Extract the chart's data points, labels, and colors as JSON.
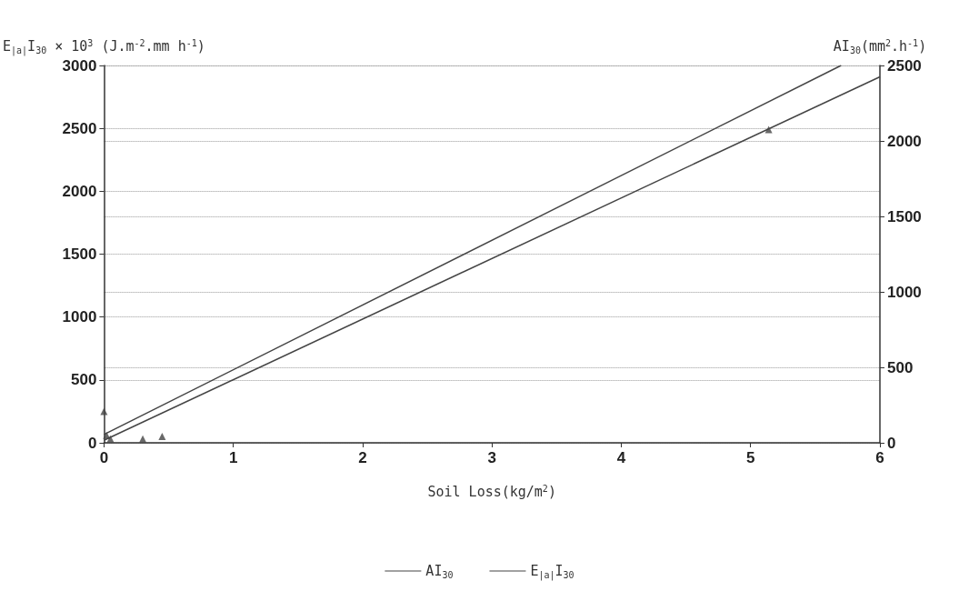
{
  "chart_data": {
    "type": "line",
    "xlabel": "Soil Loss(kg/m$^{2}$)",
    "ylabel": "E$_{|a|}$I$_{30}$ × 10$^{3}$ (J.m$^{-2}$.mm h$^{-1}$)",
    "y2label": "AI$_{30}$(mm$^{2}$.h$^{-1}$)",
    "series": [
      {
        "name": "AI$_{30}$",
        "color": "#444444",
        "axis": "y2",
        "x": [
          0,
          5.7
        ],
        "values": [
          55,
          2500
        ],
        "marker": "none"
      },
      {
        "name": "E$_{|a|}$I$_{30}$",
        "color": "#444444",
        "x": [
          0,
          6
        ],
        "values": [
          20,
          2910
        ],
        "marker": "none"
      },
      {
        "type": "scatter",
        "color": "#444444",
        "x": [
          0,
          0.02,
          0.05,
          0.3,
          0.45,
          5.14
        ],
        "values": [
          250,
          60,
          30,
          30,
          50,
          2490
        ],
        "marker": "triangle"
      }
    ],
    "xlim": [
      0,
      6
    ],
    "xticks": [
      0,
      1,
      2,
      3,
      4,
      5,
      6
    ],
    "ylim": [
      0,
      3000
    ],
    "yticks": [
      0,
      500,
      1000,
      1500,
      2000,
      2500,
      3000
    ],
    "y2lim": [
      0,
      2500
    ],
    "y2ticks": [
      0,
      500,
      1000,
      1500,
      2000,
      2500
    ],
    "grid": "y",
    "legend": "bottom",
    "line_style": "solid"
  }
}
